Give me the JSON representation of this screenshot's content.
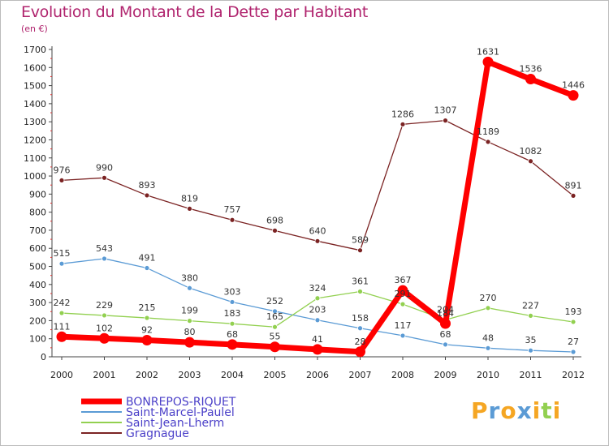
{
  "chart_data": {
    "type": "line",
    "title": "Evolution du Montant de la Dette par Habitant",
    "subtitle": "(en €)",
    "categories": [
      "2000",
      "2001",
      "2002",
      "2003",
      "2004",
      "2005",
      "2006",
      "2007",
      "2008",
      "2009",
      "2010",
      "2011",
      "2012"
    ],
    "ylim": [
      0,
      1700
    ],
    "yticks": [
      0,
      100,
      200,
      300,
      400,
      500,
      600,
      700,
      800,
      900,
      1000,
      1100,
      1200,
      1300,
      1400,
      1500,
      1600,
      1700
    ],
    "grid": false,
    "legend_position": "bottom-left",
    "series": [
      {
        "name": "BONREPOS-RIQUET",
        "color": "#ff0000",
        "values": [
          111,
          102,
          92,
          80,
          68,
          55,
          41,
          28,
          367,
          184,
          1631,
          1536,
          1446
        ]
      },
      {
        "name": "Saint-Marcel-Paulel",
        "color": "#5b9bd5",
        "values": [
          515,
          543,
          491,
          380,
          303,
          252,
          203,
          158,
          117,
          68,
          48,
          35,
          27
        ]
      },
      {
        "name": "Saint-Jean-Lherm",
        "color": "#92d050",
        "values": [
          242,
          229,
          215,
          199,
          183,
          165,
          324,
          361,
          291,
          204,
          270,
          227,
          193
        ]
      },
      {
        "name": "Gragnague",
        "color": "#7b2323",
        "values": [
          976,
          990,
          893,
          819,
          757,
          698,
          640,
          589,
          1286,
          1307,
          1189,
          1082,
          891
        ]
      }
    ]
  },
  "brand": {
    "text": "Proxiti",
    "letter_colors": [
      "#f5a623",
      "#5b9bd5",
      "#f5a623",
      "#5b9bd5",
      "#f5a623",
      "#92d050",
      "#f5a623"
    ]
  }
}
